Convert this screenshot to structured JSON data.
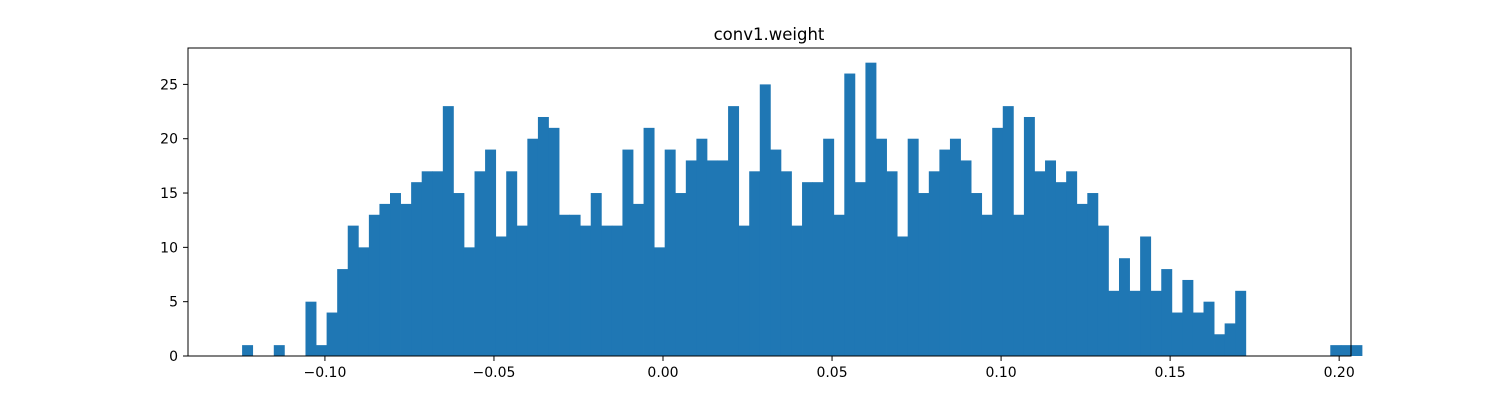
{
  "chart_data": {
    "type": "bar",
    "title": "conv1.weight",
    "xlabel": "",
    "ylabel": "",
    "bar_color": "#1f77b4",
    "xlim": [
      -0.1405,
      0.2035
    ],
    "ylim": [
      0,
      28.35
    ],
    "grid": false,
    "bin_start": -0.1245,
    "bin_width": 0.003125,
    "counts": [
      1,
      0,
      0,
      1,
      0,
      0,
      5,
      1,
      4,
      8,
      12,
      10,
      13,
      14,
      15,
      14,
      16,
      17,
      17,
      23,
      15,
      10,
      17,
      19,
      11,
      17,
      12,
      20,
      22,
      21,
      13,
      13,
      12,
      15,
      12,
      12,
      19,
      14,
      21,
      10,
      19,
      15,
      18,
      20,
      18,
      18,
      23,
      12,
      17,
      25,
      19,
      17,
      12,
      16,
      16,
      20,
      13,
      26,
      16,
      27,
      20,
      17,
      11,
      20,
      15,
      17,
      19,
      20,
      18,
      15,
      13,
      21,
      23,
      13,
      22,
      17,
      18,
      16,
      17,
      14,
      15,
      12,
      6,
      9,
      6,
      11,
      6,
      8,
      4,
      7,
      4,
      5,
      2,
      3,
      6,
      0,
      0,
      0,
      0,
      0,
      0,
      0,
      0,
      1,
      1,
      1
    ],
    "x_ticks": [
      {
        "value": -0.1,
        "label": "−0.10"
      },
      {
        "value": -0.05,
        "label": "−0.05"
      },
      {
        "value": 0.0,
        "label": "0.00"
      },
      {
        "value": 0.05,
        "label": "0.05"
      },
      {
        "value": 0.1,
        "label": "0.10"
      },
      {
        "value": 0.15,
        "label": "0.15"
      },
      {
        "value": 0.2,
        "label": "0.20"
      }
    ],
    "y_ticks": [
      {
        "value": 0,
        "label": "0"
      },
      {
        "value": 5,
        "label": "5"
      },
      {
        "value": 10,
        "label": "10"
      },
      {
        "value": 15,
        "label": "15"
      },
      {
        "value": 20,
        "label": "20"
      },
      {
        "value": 25,
        "label": "25"
      }
    ]
  }
}
